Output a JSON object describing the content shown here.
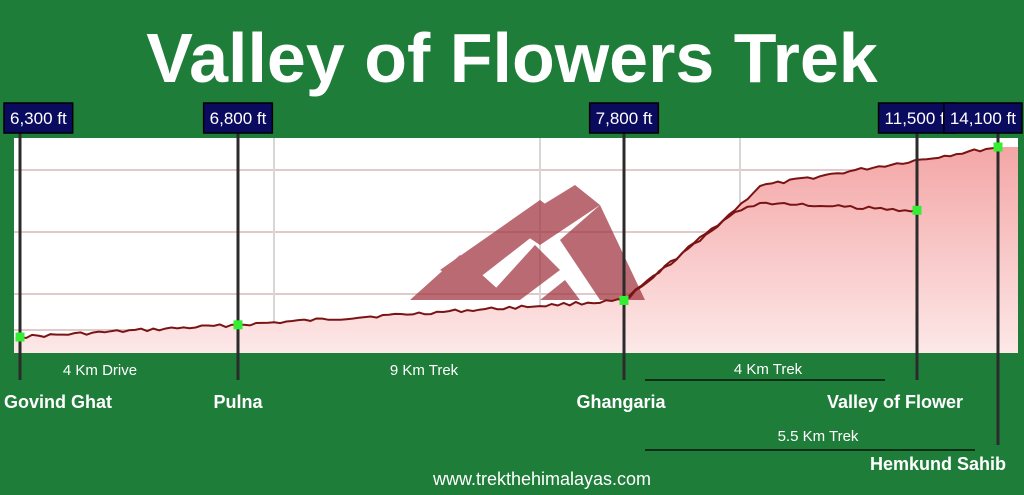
{
  "chart_data": {
    "type": "area",
    "title": "Valley of Flowers Trek",
    "footer": "www.trekthehimalayas.com",
    "waypoints": [
      {
        "name": "Govind Ghat",
        "altitude_label": "6,300 ft",
        "altitude_ft": 6300
      },
      {
        "name": "Pulna",
        "altitude_label": "6,800 ft",
        "altitude_ft": 6800
      },
      {
        "name": "Ghangaria",
        "altitude_label": "7,800 ft",
        "altitude_ft": 7800
      },
      {
        "name": "Valley of Flower",
        "altitude_label": "11,500 ft",
        "altitude_ft": 11500
      },
      {
        "name": "Hemkund Sahib",
        "altitude_label": "14,100 ft",
        "altitude_ft": 14100
      }
    ],
    "segments": [
      {
        "label": "4 Km Drive",
        "from": "Govind Ghat",
        "to": "Pulna"
      },
      {
        "label": "9 Km Trek",
        "from": "Pulna",
        "to": "Ghangaria"
      },
      {
        "label": "4 Km Trek",
        "from": "Ghangaria",
        "to": "Valley of Flower"
      },
      {
        "label": "5.5 Km Trek",
        "from": "Ghangaria",
        "to": "Hemkund Sahib"
      }
    ],
    "series": [
      {
        "from": "Govind Ghat",
        "to": "Hemkund Sahib",
        "x": [
          0,
          4,
          13,
          18.5
        ],
        "y": [
          6300,
          6800,
          7800,
          14100
        ]
      },
      {
        "from": "Ghangaria",
        "to": "Valley of Flower",
        "x": [
          13,
          17
        ],
        "y": [
          7800,
          11500
        ]
      }
    ],
    "grid": true,
    "colors": {
      "background": "#1f7d3a",
      "label_box": "#0a0a5e",
      "profile_line": "#7a1414",
      "fill_top": "#f4a6a6",
      "fill_bottom": "#fde8e8",
      "marker": "#33ee33",
      "logo": "#a0323c"
    }
  }
}
